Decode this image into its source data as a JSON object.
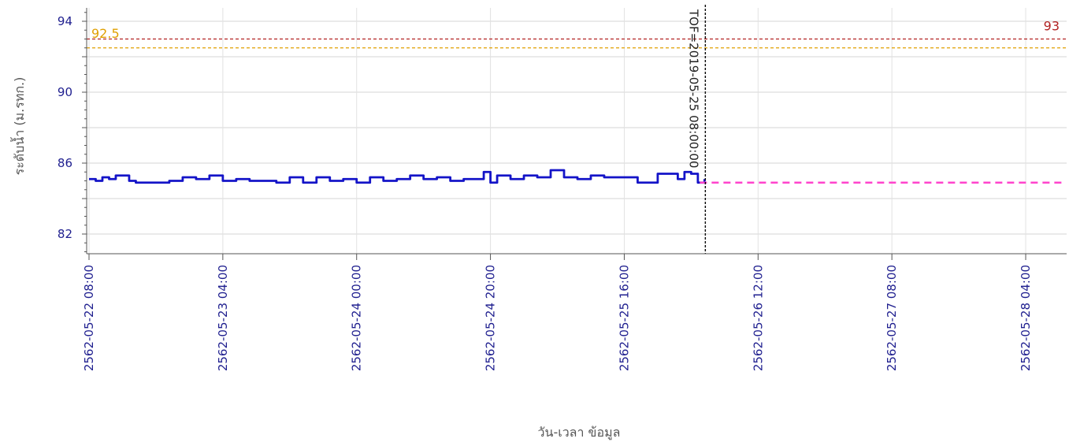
{
  "chart_data": {
    "type": "line",
    "xlabel": "วัน-เวลา ข้อมูล",
    "ylabel": "ระดับน้ำ (ม.รทก.)",
    "ylim": [
      81,
      95
    ],
    "yticks": [
      82,
      86,
      90,
      94
    ],
    "xlim": [
      "2562-05-22 08:00",
      "2562-05-28 08:00"
    ],
    "xticks": [
      "2562-05-22 08:00",
      "2562-05-23 04:00",
      "2562-05-24 00:00",
      "2562-05-24 20:00",
      "2562-05-25 16:00",
      "2562-05-26 12:00",
      "2562-05-27 08:00",
      "2562-05-28 04:00"
    ],
    "grid": true,
    "colors": {
      "observed": "#1414c8",
      "forecast": "#ff44cc",
      "bank": "#b22222",
      "warning": "#e0a000",
      "tof_line": "#000000",
      "axis_text": "#1f1f8f"
    },
    "reference_lines": [
      {
        "value": 93,
        "label": "93",
        "color": "#b22222"
      },
      {
        "value": 92.5,
        "label": "92.5",
        "color": "#e0a000"
      }
    ],
    "tof": {
      "x": "2562-05-25 08:00",
      "label": "TOF=2019-05-25 08:00:00"
    },
    "series": [
      {
        "style": "solid",
        "points": [
          [
            "2562-05-22 08:00",
            85.1
          ],
          [
            "2562-05-22 09:00",
            85.0
          ],
          [
            "2562-05-22 10:00",
            85.2
          ],
          [
            "2562-05-22 11:00",
            85.1
          ],
          [
            "2562-05-22 12:00",
            85.3
          ],
          [
            "2562-05-22 14:00",
            85.0
          ],
          [
            "2562-05-22 15:00",
            84.9
          ],
          [
            "2562-05-22 18:00",
            84.9
          ],
          [
            "2562-05-22 20:00",
            85.0
          ],
          [
            "2562-05-22 22:00",
            85.2
          ],
          [
            "2562-05-23 00:00",
            85.1
          ],
          [
            "2562-05-23 02:00",
            85.3
          ],
          [
            "2562-05-23 04:00",
            85.0
          ],
          [
            "2562-05-23 06:00",
            85.1
          ],
          [
            "2562-05-23 08:00",
            85.0
          ],
          [
            "2562-05-23 10:00",
            85.0
          ],
          [
            "2562-05-23 12:00",
            84.9
          ],
          [
            "2562-05-23 14:00",
            85.2
          ],
          [
            "2562-05-23 16:00",
            84.9
          ],
          [
            "2562-05-23 18:00",
            85.2
          ],
          [
            "2562-05-23 20:00",
            85.0
          ],
          [
            "2562-05-23 22:00",
            85.1
          ],
          [
            "2562-05-24 00:00",
            84.9
          ],
          [
            "2562-05-24 02:00",
            85.2
          ],
          [
            "2562-05-24 04:00",
            85.0
          ],
          [
            "2562-05-24 06:00",
            85.1
          ],
          [
            "2562-05-24 08:00",
            85.3
          ],
          [
            "2562-05-24 10:00",
            85.1
          ],
          [
            "2562-05-24 12:00",
            85.2
          ],
          [
            "2562-05-24 14:00",
            85.0
          ],
          [
            "2562-05-24 16:00",
            85.1
          ],
          [
            "2562-05-24 18:00",
            85.1
          ],
          [
            "2562-05-24 19:00",
            85.5
          ],
          [
            "2562-05-24 20:00",
            84.9
          ],
          [
            "2562-05-24 21:00",
            85.3
          ],
          [
            "2562-05-24 23:00",
            85.1
          ],
          [
            "2562-05-25 01:00",
            85.3
          ],
          [
            "2562-05-25 03:00",
            85.2
          ],
          [
            "2562-05-25 05:00",
            85.6
          ],
          [
            "2562-05-25 07:00",
            85.2
          ],
          [
            "2562-05-25 09:00",
            85.1
          ],
          [
            "2562-05-25 11:00",
            85.3
          ],
          [
            "2562-05-25 13:00",
            85.2
          ],
          [
            "2562-05-25 15:00",
            85.2
          ],
          [
            "2562-05-25 17:00",
            85.2
          ],
          [
            "2562-05-25 18:00",
            84.9
          ],
          [
            "2562-05-25 20:00",
            84.9
          ],
          [
            "2562-05-25 21:00",
            85.4
          ],
          [
            "2562-05-25 23:00",
            85.4
          ],
          [
            "2562-05-26 00:00",
            85.1
          ],
          [
            "2562-05-26 01:00",
            85.5
          ],
          [
            "2562-05-26 02:00",
            85.4
          ],
          [
            "2562-05-26 03:00",
            84.9
          ],
          [
            "2562-05-26 04:00",
            85.1
          ]
        ]
      },
      {
        "style": "dashed",
        "points": [
          [
            "2562-05-26 04:00",
            84.9
          ],
          [
            "2562-05-28 08:00",
            84.9
          ]
        ]
      }
    ]
  }
}
